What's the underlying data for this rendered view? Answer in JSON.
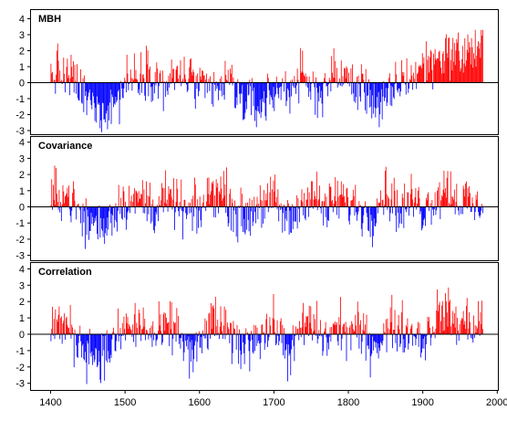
{
  "chart_data": [
    {
      "type": "bar",
      "title": "MBH",
      "xlim": [
        1400,
        1980
      ],
      "ylim": [
        -3,
        4
      ],
      "yticks": [
        "-3",
        "-2",
        "-1",
        "0",
        "1",
        "2",
        "3",
        "4"
      ],
      "positive_color": "#ff0000",
      "negative_color": "#0000ff",
      "x_knots": [
        1400,
        1410,
        1420,
        1430,
        1440,
        1450,
        1460,
        1470,
        1480,
        1490,
        1500,
        1510,
        1520,
        1530,
        1540,
        1550,
        1560,
        1570,
        1580,
        1590,
        1600,
        1610,
        1620,
        1630,
        1640,
        1650,
        1660,
        1670,
        1680,
        1690,
        1700,
        1710,
        1720,
        1730,
        1740,
        1750,
        1760,
        1770,
        1780,
        1790,
        1800,
        1810,
        1820,
        1830,
        1840,
        1850,
        1860,
        1870,
        1880,
        1890,
        1900,
        1910,
        1920,
        1930,
        1940,
        1950,
        1960,
        1970,
        1980
      ],
      "y_knots": [
        0.4,
        0.7,
        0.2,
        0.3,
        -0.6,
        -1.2,
        -1.6,
        -1.8,
        -1.3,
        -1.1,
        0.1,
        0.3,
        0.6,
        0.8,
        0.4,
        -0.2,
        -0.1,
        0.5,
        0.4,
        0.2,
        -0.4,
        -0.6,
        -0.5,
        -0.3,
        0.2,
        -0.7,
        -1.2,
        -1.4,
        -1.5,
        -1.0,
        -0.7,
        -0.3,
        -0.4,
        0.3,
        0.1,
        -0.4,
        -0.6,
        -0.1,
        0.4,
        0.6,
        0.1,
        -0.4,
        -0.3,
        -0.8,
        -1.6,
        -1.3,
        -0.6,
        0.2,
        0.3,
        0.5,
        1.1,
        1.3,
        1.6,
        1.9,
        1.9,
        1.7,
        1.9,
        2.1,
        2.3
      ]
    },
    {
      "type": "bar",
      "title": "Covariance",
      "xlim": [
        1400,
        1980
      ],
      "ylim": [
        -3,
        4
      ],
      "yticks": [
        "-3",
        "-2",
        "-1",
        "0",
        "1",
        "2",
        "3",
        "4"
      ],
      "positive_color": "#ff0000",
      "negative_color": "#0000ff",
      "x_knots": [
        1400,
        1410,
        1420,
        1430,
        1440,
        1450,
        1460,
        1470,
        1480,
        1490,
        1500,
        1510,
        1520,
        1530,
        1540,
        1550,
        1560,
        1570,
        1580,
        1590,
        1600,
        1610,
        1620,
        1630,
        1640,
        1650,
        1660,
        1670,
        1680,
        1690,
        1700,
        1710,
        1720,
        1730,
        1740,
        1750,
        1760,
        1770,
        1780,
        1790,
        1800,
        1810,
        1820,
        1830,
        1840,
        1850,
        1860,
        1870,
        1880,
        1890,
        1900,
        1910,
        1920,
        1930,
        1940,
        1950,
        1960,
        1970,
        1980
      ],
      "y_knots": [
        0.5,
        0.9,
        0.8,
        0.3,
        -0.6,
        -1.1,
        -0.9,
        -1.3,
        -0.6,
        0.1,
        0.4,
        0.2,
        0.6,
        0.3,
        -0.2,
        0.5,
        0.2,
        0.3,
        -0.5,
        -0.3,
        -0.4,
        0.6,
        1.2,
        0.9,
        0.4,
        -0.4,
        -0.8,
        -0.3,
        0.4,
        0.1,
        0.5,
        -0.4,
        -1.0,
        -0.3,
        0.6,
        0.9,
        0.3,
        -0.3,
        0.4,
        0.6,
        0.2,
        0.1,
        -0.3,
        -0.7,
        0.5,
        1.0,
        0.4,
        -0.4,
        0.3,
        0.5,
        -0.3,
        0.4,
        0.7,
        1.3,
        0.9,
        0.3,
        0.5,
        -0.3,
        0.5
      ]
    },
    {
      "type": "bar",
      "title": "Correlation",
      "xlim": [
        1400,
        1980
      ],
      "ylim": [
        -3,
        4
      ],
      "yticks": [
        "-3",
        "-2",
        "-1",
        "0",
        "1",
        "2",
        "3",
        "4"
      ],
      "xticks": [
        "1400",
        "1500",
        "1600",
        "1700",
        "1800",
        "1900",
        "2000"
      ],
      "positive_color": "#ff0000",
      "negative_color": "#0000ff",
      "x_knots": [
        1400,
        1410,
        1420,
        1430,
        1440,
        1450,
        1460,
        1470,
        1480,
        1490,
        1500,
        1510,
        1520,
        1530,
        1540,
        1550,
        1560,
        1570,
        1580,
        1590,
        1600,
        1610,
        1620,
        1630,
        1640,
        1650,
        1660,
        1670,
        1680,
        1690,
        1700,
        1710,
        1720,
        1730,
        1740,
        1750,
        1760,
        1770,
        1780,
        1790,
        1800,
        1810,
        1820,
        1830,
        1840,
        1850,
        1860,
        1870,
        1880,
        1890,
        1900,
        1910,
        1920,
        1930,
        1940,
        1950,
        1960,
        1970,
        1980
      ],
      "y_knots": [
        0.4,
        0.8,
        0.5,
        -0.2,
        -0.6,
        -1.0,
        -1.2,
        -1.4,
        -0.9,
        -0.3,
        0.5,
        0.3,
        0.6,
        0.2,
        -0.3,
        0.2,
        0.4,
        0.3,
        -0.7,
        -1.4,
        -0.8,
        0.4,
        0.8,
        0.5,
        -0.3,
        -0.5,
        -0.8,
        -0.3,
        0.2,
        0.1,
        0.6,
        -0.4,
        -1.1,
        -0.5,
        0.7,
        0.6,
        0.1,
        -0.4,
        0.3,
        0.4,
        0.1,
        0.3,
        -0.2,
        -0.6,
        -0.4,
        0.1,
        0.6,
        0.3,
        0.1,
        0.2,
        -0.5,
        0.5,
        1.1,
        1.5,
        0.8,
        0.6,
        0.8,
        0.4,
        0.9
      ]
    }
  ]
}
